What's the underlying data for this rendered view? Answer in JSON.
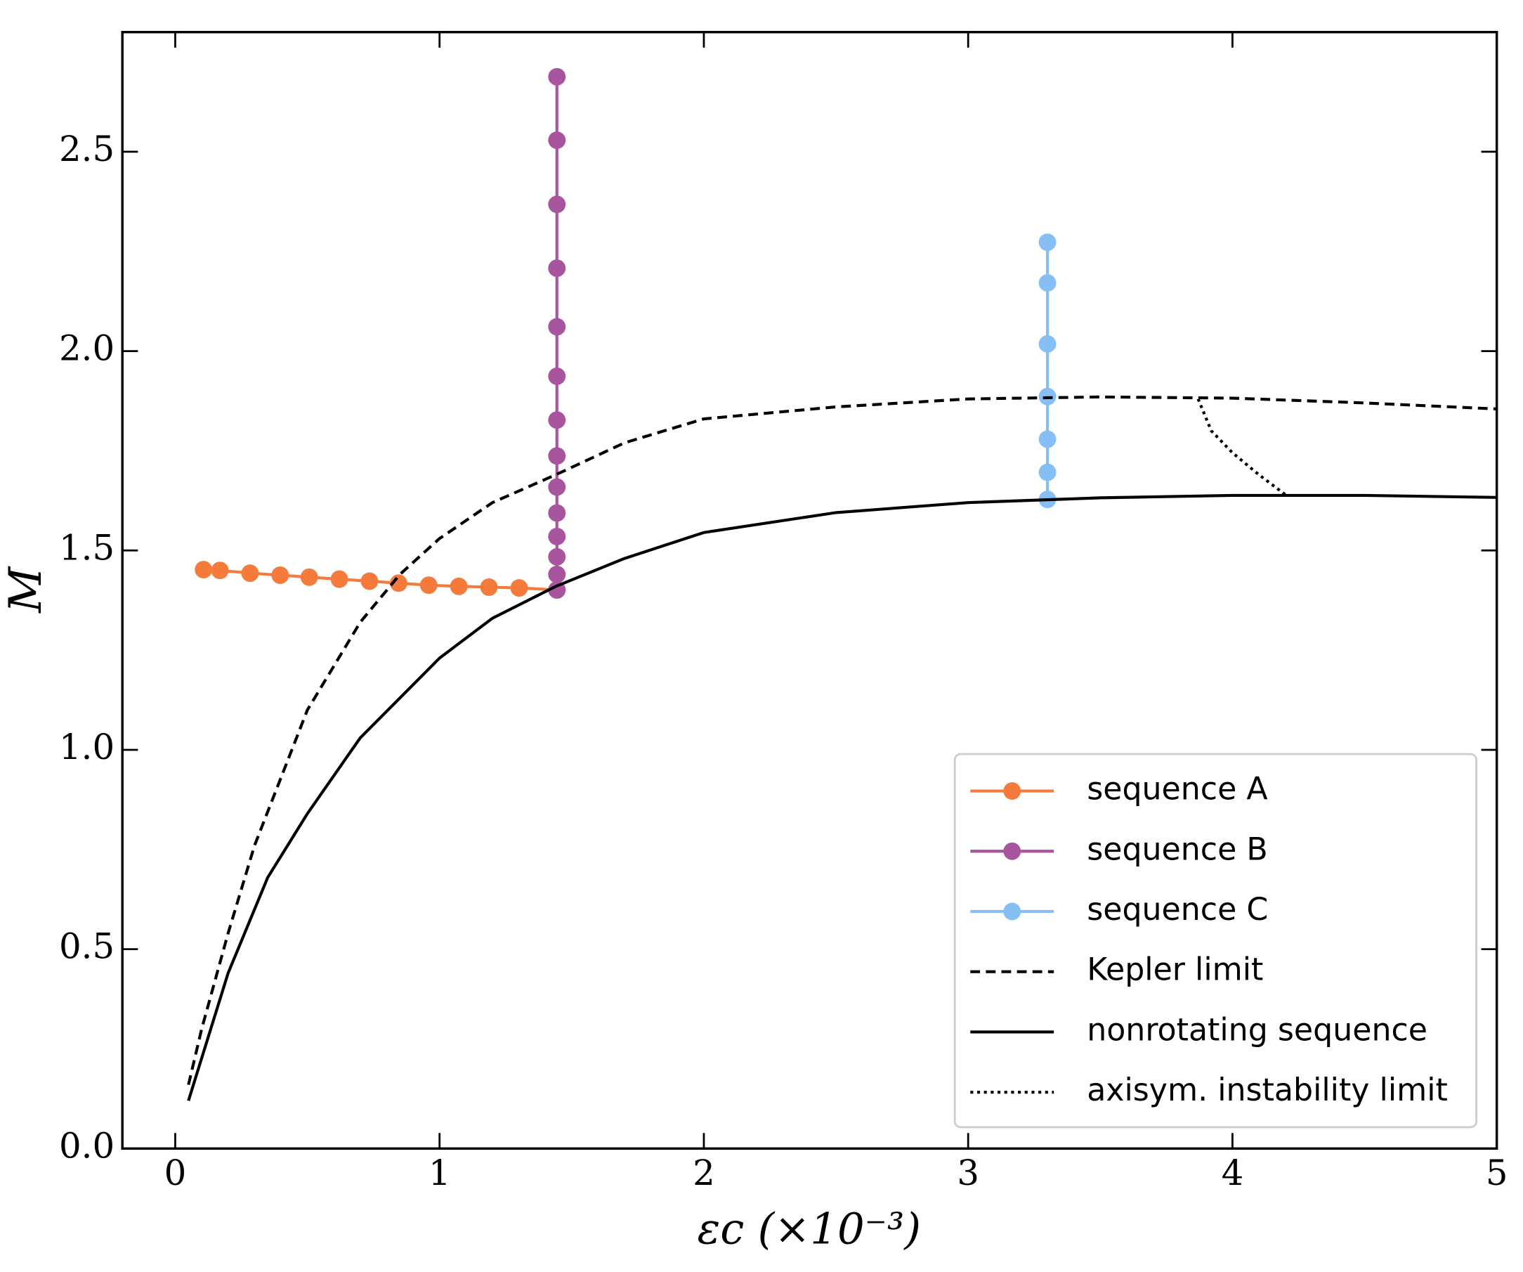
{
  "chart_data": {
    "type": "line",
    "xlabel": "εc (×10⁻³)",
    "ylabel": "M",
    "xlim": [
      -0.2,
      5
    ],
    "xticks": [
      0,
      1,
      2,
      3,
      4,
      5
    ],
    "ylim": [
      0,
      2.8
    ],
    "yticks": [
      {
        "value": 0,
        "label": "0.0"
      },
      {
        "value": 0.5,
        "label": "0.5"
      },
      {
        "value": 1,
        "label": "1.0"
      },
      {
        "value": 1.5,
        "label": "1.5"
      },
      {
        "value": 2,
        "label": "2.0"
      },
      2.5
    ],
    "legend": "lower right",
    "series": [
      {
        "name": "sequence A",
        "color": "#f47b3b",
        "linestyle": "solid",
        "marker": true,
        "x": [
          0.107,
          0.169,
          0.283,
          0.397,
          0.507,
          0.621,
          0.735,
          0.845,
          0.959,
          1.073,
          1.187,
          1.301,
          1.444
        ],
        "values": [
          1.452,
          1.45,
          1.443,
          1.438,
          1.433,
          1.428,
          1.423,
          1.418,
          1.413,
          1.41,
          1.408,
          1.406,
          1.401
        ]
      },
      {
        "name": "sequence B",
        "color": "#a8559f",
        "linestyle": "solid",
        "marker": true,
        "x": [
          1.444,
          1.444,
          1.444,
          1.444,
          1.444,
          1.444,
          1.444,
          1.444,
          1.444,
          1.444,
          1.444,
          1.444,
          1.444,
          1.444
        ],
        "values": [
          2.688,
          2.529,
          2.368,
          2.208,
          2.061,
          1.937,
          1.827,
          1.737,
          1.659,
          1.594,
          1.535,
          1.484,
          1.44,
          1.401
        ]
      },
      {
        "name": "sequence C",
        "color": "#85bff4",
        "linestyle": "solid",
        "marker": true,
        "x": [
          3.3,
          3.3,
          3.3,
          3.3,
          3.3,
          3.3,
          3.3
        ],
        "values": [
          2.273,
          2.171,
          2.018,
          1.886,
          1.779,
          1.696,
          1.628
        ]
      },
      {
        "name": "Kepler limit",
        "color": "#000000",
        "linestyle": "dashed",
        "marker": false,
        "x": [
          0.05,
          0.1,
          0.2,
          0.3,
          0.5,
          0.7,
          0.85,
          1.0,
          1.2,
          1.44,
          1.7,
          2.0,
          2.5,
          3.0,
          3.5,
          4.0,
          4.5,
          5.0
        ],
        "values": [
          0.16,
          0.3,
          0.54,
          0.76,
          1.1,
          1.32,
          1.44,
          1.53,
          1.62,
          1.69,
          1.77,
          1.83,
          1.86,
          1.88,
          1.885,
          1.882,
          1.87,
          1.855
        ]
      },
      {
        "name": "nonrotating sequence",
        "color": "#000000",
        "linestyle": "solid",
        "marker": false,
        "x": [
          0.05,
          0.2,
          0.35,
          0.5,
          0.7,
          1.0,
          1.2,
          1.44,
          1.7,
          2.0,
          2.5,
          3.0,
          3.5,
          4.0,
          4.5,
          5.0
        ],
        "values": [
          0.12,
          0.44,
          0.68,
          0.84,
          1.03,
          1.23,
          1.33,
          1.41,
          1.48,
          1.545,
          1.595,
          1.62,
          1.632,
          1.638,
          1.638,
          1.633
        ]
      },
      {
        "name": "axisym. instability limit",
        "color": "#000000",
        "linestyle": "dotted",
        "marker": false,
        "x": [
          3.87,
          3.92,
          4.0,
          4.1,
          4.2
        ],
        "values": [
          1.88,
          1.8,
          1.745,
          1.69,
          1.64
        ]
      }
    ]
  }
}
